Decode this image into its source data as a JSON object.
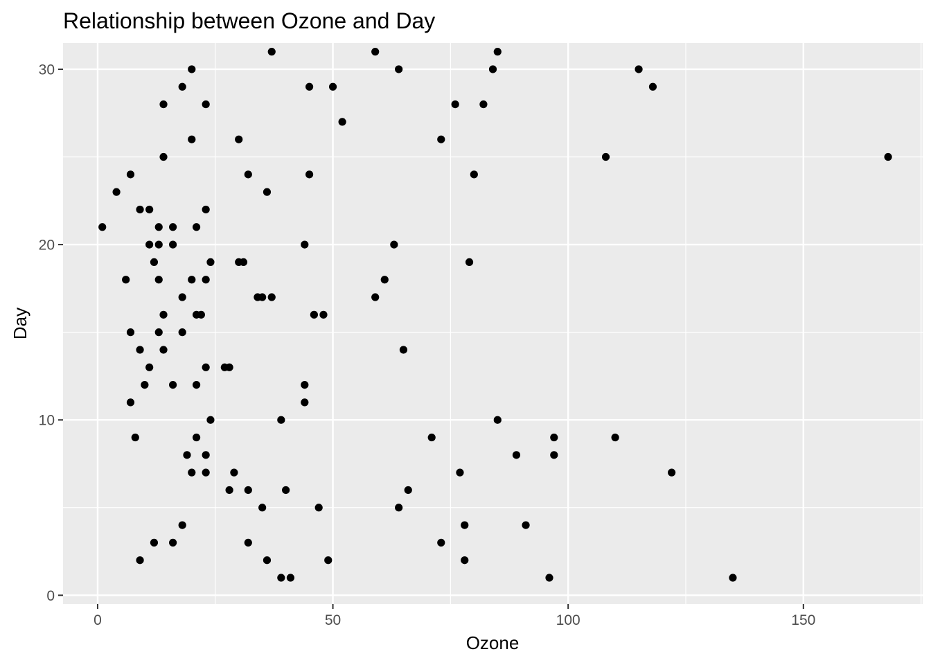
{
  "chart_data": {
    "type": "scatter",
    "title": "Relationship between Ozone and Day",
    "xlabel": "Ozone",
    "ylabel": "Day",
    "xlim": [
      -7.35,
      175.35
    ],
    "ylim": [
      -0.5,
      31.5
    ],
    "x_ticks": [
      0,
      50,
      100,
      150
    ],
    "y_ticks": [
      0,
      10,
      20,
      30
    ],
    "x_tick_labels": [
      "0",
      "50",
      "100",
      "150"
    ],
    "y_tick_labels": [
      "0",
      "10",
      "20",
      "30"
    ],
    "grid": true,
    "legend": "none",
    "colors": {
      "panel": "#ebebeb",
      "grid": "#ffffff",
      "point": "#000000",
      "tick": "#333333",
      "tick_label": "#4d4d4d"
    },
    "points": [
      {
        "x": 41,
        "y": 1
      },
      {
        "x": 36,
        "y": 2
      },
      {
        "x": 12,
        "y": 3
      },
      {
        "x": 18,
        "y": 4
      },
      {
        "x": 28,
        "y": 6
      },
      {
        "x": 23,
        "y": 7
      },
      {
        "x": 19,
        "y": 8
      },
      {
        "x": 8,
        "y": 9
      },
      {
        "x": 7,
        "y": 11
      },
      {
        "x": 16,
        "y": 12
      },
      {
        "x": 11,
        "y": 13
      },
      {
        "x": 14,
        "y": 14
      },
      {
        "x": 18,
        "y": 15
      },
      {
        "x": 14,
        "y": 16
      },
      {
        "x": 34,
        "y": 17
      },
      {
        "x": 6,
        "y": 18
      },
      {
        "x": 30,
        "y": 19
      },
      {
        "x": 11,
        "y": 20
      },
      {
        "x": 1,
        "y": 21
      },
      {
        "x": 11,
        "y": 22
      },
      {
        "x": 4,
        "y": 23
      },
      {
        "x": 32,
        "y": 24
      },
      {
        "x": 23,
        "y": 28
      },
      {
        "x": 45,
        "y": 29
      },
      {
        "x": 115,
        "y": 30
      },
      {
        "x": 37,
        "y": 31
      },
      {
        "x": 12,
        "y": 19
      },
      {
        "x": 9,
        "y": 22
      },
      {
        "x": 13,
        "y": 21
      },
      {
        "x": 16,
        "y": 21
      },
      {
        "x": 9,
        "y": 14
      },
      {
        "x": 13,
        "y": 15
      },
      {
        "x": 14,
        "y": 25
      },
      {
        "x": 7,
        "y": 24
      },
      {
        "x": 16,
        "y": 20
      },
      {
        "x": 13,
        "y": 20
      },
      {
        "x": 13,
        "y": 18
      },
      {
        "x": 10,
        "y": 12
      },
      {
        "x": 7,
        "y": 15
      },
      {
        "x": 9,
        "y": 2
      },
      {
        "x": 14,
        "y": 28
      },
      {
        "x": 16,
        "y": 3
      },
      {
        "x": 18,
        "y": 29
      },
      {
        "x": 20,
        "y": 30
      },
      {
        "x": 20,
        "y": 26
      },
      {
        "x": 18,
        "y": 17
      },
      {
        "x": 20,
        "y": 18
      },
      {
        "x": 20,
        "y": 7
      },
      {
        "x": 21,
        "y": 21
      },
      {
        "x": 21,
        "y": 16
      },
      {
        "x": 22,
        "y": 16
      },
      {
        "x": 21,
        "y": 12
      },
      {
        "x": 21,
        "y": 9
      },
      {
        "x": 23,
        "y": 22
      },
      {
        "x": 23,
        "y": 18
      },
      {
        "x": 24,
        "y": 19
      },
      {
        "x": 23,
        "y": 13
      },
      {
        "x": 24,
        "y": 10
      },
      {
        "x": 23,
        "y": 8
      },
      {
        "x": 31,
        "y": 19
      },
      {
        "x": 30,
        "y": 26
      },
      {
        "x": 27,
        "y": 13
      },
      {
        "x": 28,
        "y": 13
      },
      {
        "x": 29,
        "y": 7
      },
      {
        "x": 32,
        "y": 6
      },
      {
        "x": 32,
        "y": 3
      },
      {
        "x": 35,
        "y": 17
      },
      {
        "x": 35,
        "y": 5
      },
      {
        "x": 36,
        "y": 23
      },
      {
        "x": 37,
        "y": 17
      },
      {
        "x": 39,
        "y": 10
      },
      {
        "x": 39,
        "y": 1
      },
      {
        "x": 40,
        "y": 6
      },
      {
        "x": 44,
        "y": 20
      },
      {
        "x": 44,
        "y": 12
      },
      {
        "x": 44,
        "y": 11
      },
      {
        "x": 45,
        "y": 24
      },
      {
        "x": 46,
        "y": 16
      },
      {
        "x": 48,
        "y": 16
      },
      {
        "x": 47,
        "y": 5
      },
      {
        "x": 49,
        "y": 2
      },
      {
        "x": 50,
        "y": 29
      },
      {
        "x": 52,
        "y": 27
      },
      {
        "x": 59,
        "y": 31
      },
      {
        "x": 59,
        "y": 17
      },
      {
        "x": 61,
        "y": 18
      },
      {
        "x": 63,
        "y": 20
      },
      {
        "x": 64,
        "y": 30
      },
      {
        "x": 65,
        "y": 14
      },
      {
        "x": 64,
        "y": 5
      },
      {
        "x": 66,
        "y": 6
      },
      {
        "x": 71,
        "y": 9
      },
      {
        "x": 73,
        "y": 26
      },
      {
        "x": 73,
        "y": 3
      },
      {
        "x": 76,
        "y": 28
      },
      {
        "x": 77,
        "y": 7
      },
      {
        "x": 78,
        "y": 4
      },
      {
        "x": 78,
        "y": 2
      },
      {
        "x": 79,
        "y": 19
      },
      {
        "x": 80,
        "y": 24
      },
      {
        "x": 82,
        "y": 28
      },
      {
        "x": 84,
        "y": 30
      },
      {
        "x": 85,
        "y": 31
      },
      {
        "x": 85,
        "y": 10
      },
      {
        "x": 89,
        "y": 8
      },
      {
        "x": 91,
        "y": 4
      },
      {
        "x": 96,
        "y": 1
      },
      {
        "x": 97,
        "y": 9
      },
      {
        "x": 97,
        "y": 8
      },
      {
        "x": 108,
        "y": 25
      },
      {
        "x": 110,
        "y": 9
      },
      {
        "x": 118,
        "y": 29
      },
      {
        "x": 122,
        "y": 7
      },
      {
        "x": 135,
        "y": 1
      },
      {
        "x": 168,
        "y": 25
      }
    ]
  }
}
